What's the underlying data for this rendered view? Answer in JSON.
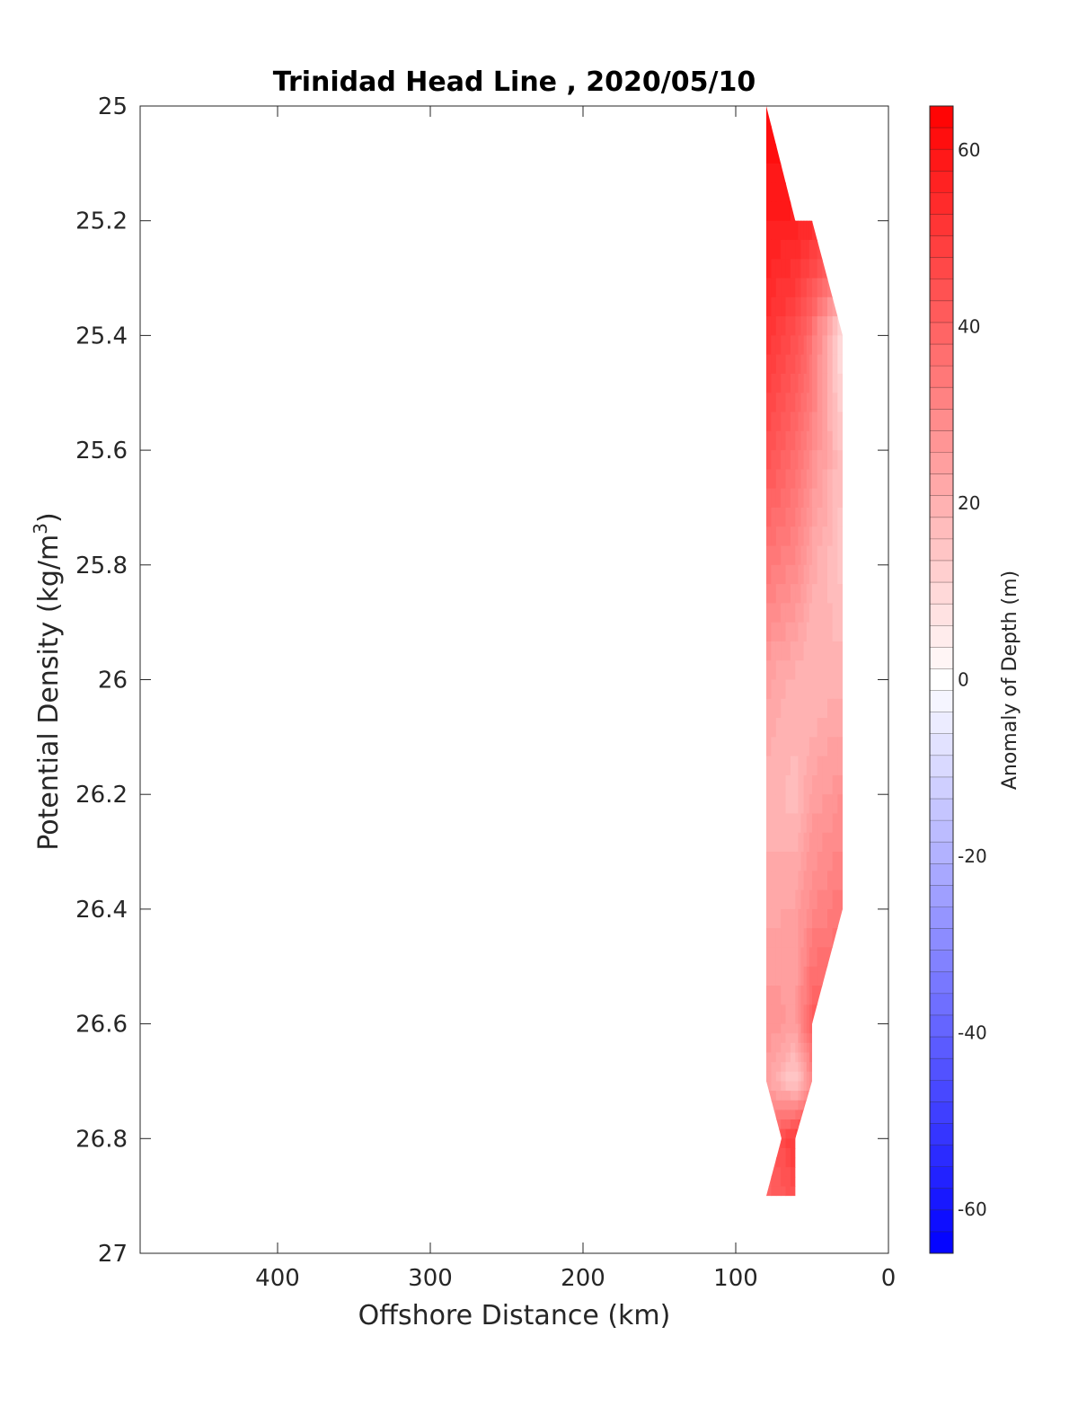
{
  "chart_data": {
    "type": "heatmap",
    "title": "Trinidad Head Line , 2020/05/10",
    "xlabel": "Offshore Distance (km)",
    "ylabel": "Potential Density (kg/m",
    "ylabel_sup": "3",
    "ylabel_end": ")",
    "xlim": [
      490,
      0
    ],
    "ylim": [
      25,
      27
    ],
    "y_reversed": true,
    "grid": false,
    "x_ticks": [
      {
        "value": 400,
        "label": "400"
      },
      {
        "value": 300,
        "label": "300"
      },
      {
        "value": 200,
        "label": "200"
      },
      {
        "value": 100,
        "label": "100"
      },
      {
        "value": 0,
        "label": "0"
      }
    ],
    "y_ticks": [
      {
        "value": 25,
        "label": "25"
      },
      {
        "value": 25.2,
        "label": "25.2"
      },
      {
        "value": 25.4,
        "label": "25.4"
      },
      {
        "value": 25.6,
        "label": "25.6"
      },
      {
        "value": 25.8,
        "label": "25.8"
      },
      {
        "value": 26,
        "label": "26"
      },
      {
        "value": 26.2,
        "label": "26.2"
      },
      {
        "value": 26.4,
        "label": "26.4"
      },
      {
        "value": 26.6,
        "label": "26.6"
      },
      {
        "value": 26.8,
        "label": "26.8"
      },
      {
        "value": 27,
        "label": "27"
      }
    ],
    "colorbar": {
      "label": "Anomaly of Depth (m)",
      "range": [
        -65,
        65
      ],
      "levels": 53,
      "ticks": [
        {
          "value": 60,
          "label": "60"
        },
        {
          "value": 40,
          "label": "40"
        },
        {
          "value": 20,
          "label": "20"
        },
        {
          "value": 0,
          "label": "0"
        },
        {
          "value": -20,
          "label": "-20"
        },
        {
          "value": -40,
          "label": "-40"
        },
        {
          "value": -60,
          "label": "-60"
        }
      ],
      "colors": {
        "low": "#0000ff",
        "mid": "#ffffff",
        "high": "#ff0000"
      }
    },
    "anomaly_field": {
      "x_stations_km": [
        80,
        61,
        50,
        30
      ],
      "density_levels": [
        25.0,
        25.2,
        25.4,
        25.6,
        25.8,
        26.0,
        26.2,
        26.4,
        26.6,
        26.7,
        26.8,
        26.9
      ],
      "values": [
        [
          62,
          null,
          null,
          null
        ],
        [
          58,
          57,
          54,
          null
        ],
        [
          52,
          45,
          36,
          6
        ],
        [
          45,
          38,
          30,
          15
        ],
        [
          35,
          30,
          22,
          15
        ],
        [
          24,
          20,
          18,
          20
        ],
        [
          20,
          17,
          24,
          28
        ],
        [
          22,
          24,
          30,
          35
        ],
        [
          28,
          25,
          42,
          null
        ],
        [
          24,
          12,
          30,
          null
        ],
        [
          38,
          52,
          null,
          null
        ],
        [
          40,
          44,
          null,
          null
        ]
      ]
    },
    "data_outline": [
      [
        80,
        25.0
      ],
      [
        61,
        25.2
      ],
      [
        50,
        25.2
      ],
      [
        30,
        25.4
      ],
      [
        30,
        26.4
      ],
      [
        50,
        26.6
      ],
      [
        50,
        26.7
      ],
      [
        61,
        26.8
      ],
      [
        61,
        26.9
      ],
      [
        80,
        26.9
      ],
      [
        70,
        26.8
      ],
      [
        80,
        26.7
      ],
      [
        80,
        25.0
      ]
    ]
  }
}
